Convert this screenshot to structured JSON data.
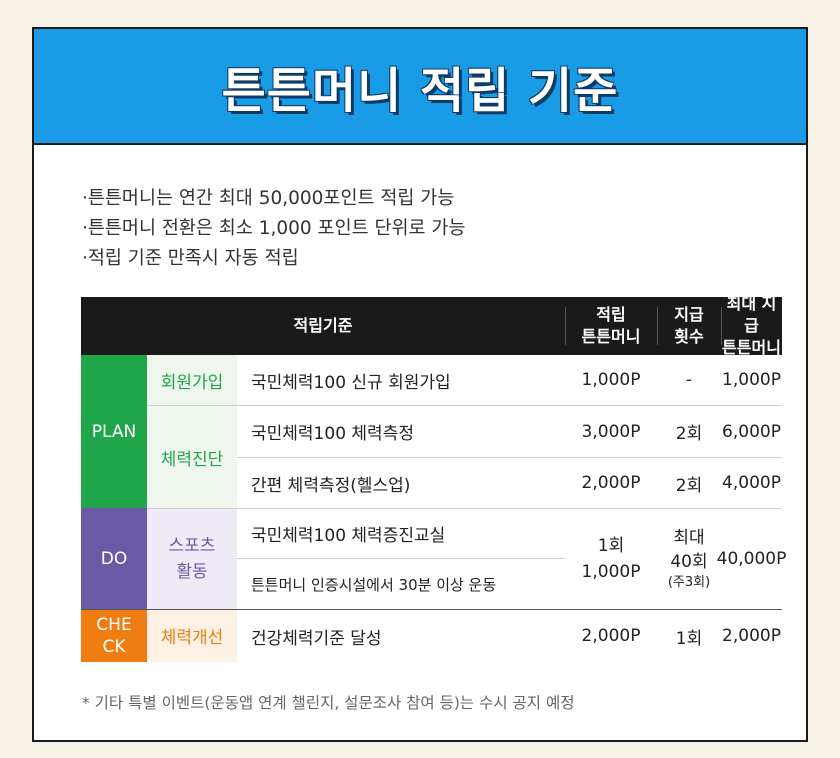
{
  "title": "튼튼머니 적립 기준",
  "bullets": [
    "·튼튼머니는 연간 최대 50,000포인트 적립 가능",
    "·튼튼머니 전환은 최소 1,000 포인트 단위로 가능",
    "·적립 기준 만족시 자동 적립"
  ],
  "table": {
    "headers": {
      "criteria": "적립기준",
      "points_1": "적립",
      "points_2": "튼튼머니",
      "count_1": "지급",
      "count_2": "횟수",
      "max_1": "최대 지급",
      "max_2": "튼튼머니"
    },
    "stages": {
      "plan": "PLAN",
      "do": "DO",
      "check_1": "CHE",
      "check_2": "CK"
    },
    "categories": {
      "signup": "회원가입",
      "diagnosis": "체력진단",
      "sports_1": "스포츠",
      "sports_2": "활동",
      "improve": "체력개선"
    },
    "rows": [
      {
        "desc": "국민체력100 신규 회원가입",
        "points": "1,000P",
        "count": "-",
        "max": "1,000P"
      },
      {
        "desc": "국민체력100 체력측정",
        "points": "3,000P",
        "count": "2회",
        "max": "6,000P"
      },
      {
        "desc": "간편 체력측정(헬스업)",
        "points": "2,000P",
        "count": "2회",
        "max": "4,000P"
      },
      {
        "desc": "국민체력100 체력증진교실"
      },
      {
        "desc": "튼튼머니 인증시설에서 30분 이상 운동"
      },
      {
        "desc": "건강체력기준 달성",
        "points": "2,000P",
        "count": "1회",
        "max": "2,000P"
      }
    ],
    "do_merged": {
      "points_1": "1회",
      "points_2": "1,000P",
      "count_1": "최대",
      "count_2": "40회",
      "count_3": "(주3회)",
      "max": "40,000P"
    }
  },
  "footnote": "* 기타 특별 이벤트(운동앱 연계 챌린지, 설문조사 참여 등)는 수시 공지 예정",
  "colors": {
    "header_blue": "#1a9be6",
    "plan_green": "#1fa64a",
    "do_purple": "#6a5aa6",
    "check_orange": "#ef7d12",
    "plan_light": "#eef6ee",
    "do_light": "#eeebf7",
    "check_light": "#fdf1e3"
  }
}
